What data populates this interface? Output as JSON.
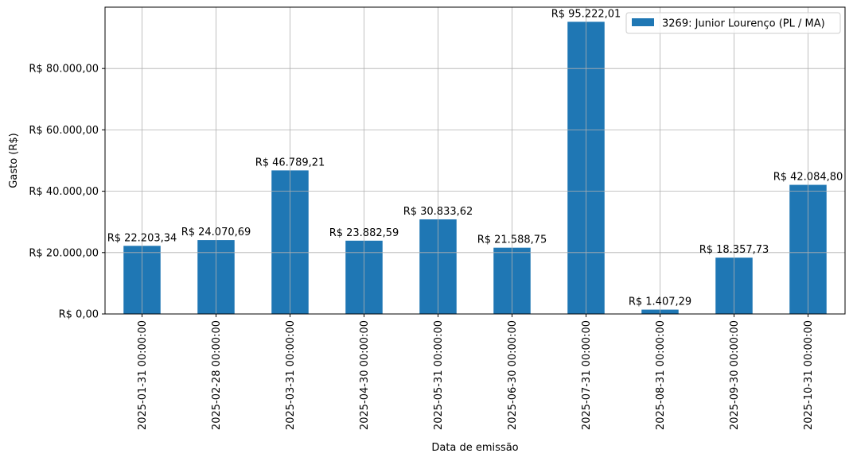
{
  "chart_data": {
    "type": "bar",
    "title": "",
    "xlabel": "Data de emissão",
    "ylabel": "Gasto (R$)",
    "ylim": [
      0,
      100000
    ],
    "yticks": [
      0,
      20000,
      40000,
      60000,
      80000
    ],
    "ytick_labels": [
      "R$ 0,00",
      "R$ 20.000,00",
      "R$ 40.000,00",
      "R$ 60.000,00",
      "R$ 80.000,00"
    ],
    "grid": true,
    "legend_position": "top-right",
    "categories": [
      "2025-01-31 00:00:00",
      "2025-02-28 00:00:00",
      "2025-03-31 00:00:00",
      "2025-04-30 00:00:00",
      "2025-05-31 00:00:00",
      "2025-06-30 00:00:00",
      "2025-07-31 00:00:00",
      "2025-08-31 00:00:00",
      "2025-09-30 00:00:00",
      "2025-10-31 00:00:00"
    ],
    "series": [
      {
        "name": "3269: Junior Lourenço (PL / MA)",
        "color": "#1f77b4",
        "values": [
          22203.34,
          24070.69,
          46789.21,
          23882.59,
          30833.62,
          21588.75,
          95222.01,
          1407.29,
          18357.73,
          42084.8
        ],
        "value_labels": [
          "R$ 22.203,34",
          "R$ 24.070,69",
          "R$ 46.789,21",
          "R$ 23.882,59",
          "R$ 30.833,62",
          "R$ 21.588,75",
          "R$ 95.222,01",
          "R$ 1.407,29",
          "R$ 18.357,73",
          "R$ 42.084,80"
        ]
      }
    ]
  }
}
